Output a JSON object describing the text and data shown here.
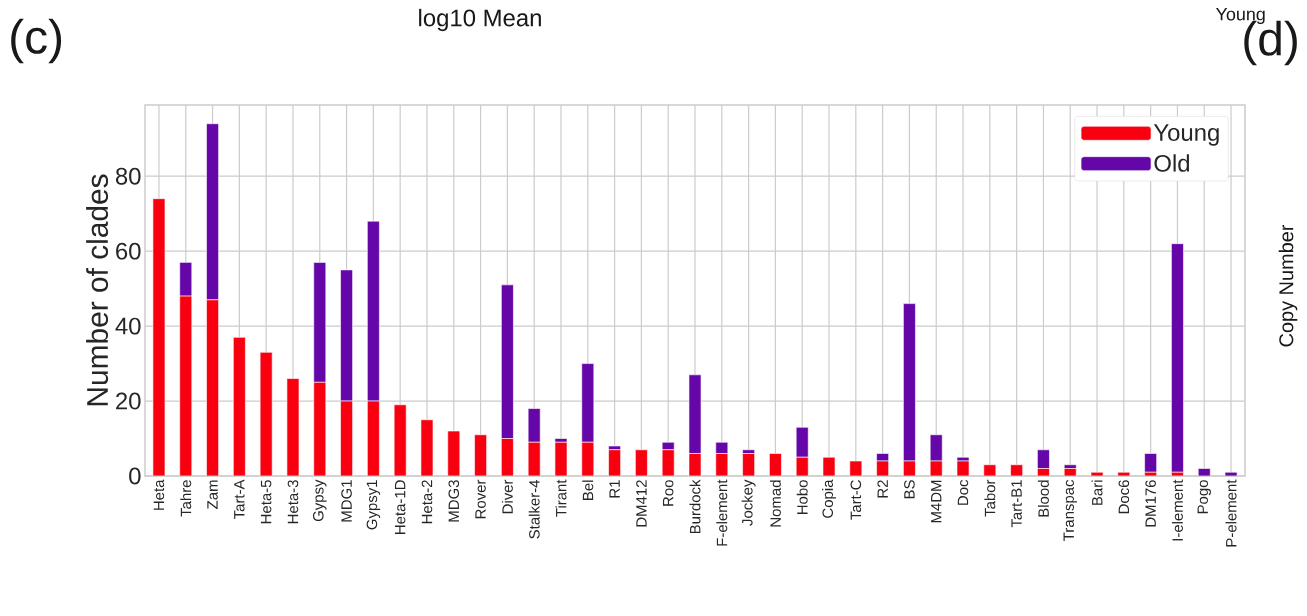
{
  "chart_data": {
    "type": "bar",
    "stacked": true,
    "ylabel": "Number of clades",
    "categories": [
      "Heta",
      "Tahre",
      "Zam",
      "Tart-A",
      "Heta-5",
      "Heta-3",
      "Gypsy",
      "MDG1",
      "Gypsy1",
      "Heta-1D",
      "Heta-2",
      "MDG3",
      "Rover",
      "Diver",
      "Stalker-4",
      "Tirant",
      "Bel",
      "R1",
      "DM412",
      "Roo",
      "Burdock",
      "F-element",
      "Jockey",
      "Nomad",
      "Hobo",
      "Copia",
      "Tart-C",
      "R2",
      "BS",
      "M4DM",
      "Doc",
      "Tabor",
      "Tart-B1",
      "Blood",
      "Transpac",
      "Bari",
      "Doc6",
      "DM176",
      "I-element",
      "Pogo",
      "P-element"
    ],
    "series": [
      {
        "name": "Young",
        "color": "#f90010",
        "values": [
          74,
          48,
          47,
          37,
          33,
          26,
          25,
          20,
          20,
          19,
          15,
          12,
          11,
          10,
          9,
          9,
          9,
          7,
          7,
          7,
          6,
          6,
          6,
          6,
          5,
          5,
          4,
          4,
          4,
          4,
          4,
          3,
          3,
          2,
          2,
          1,
          1,
          1,
          1,
          0,
          0
        ]
      },
      {
        "name": "Old",
        "color": "#6507a8",
        "values": [
          0,
          9,
          47,
          0,
          0,
          0,
          32,
          35,
          48,
          0,
          0,
          0,
          0,
          41,
          9,
          1,
          21,
          1,
          0,
          2,
          21,
          3,
          1,
          0,
          8,
          0,
          0,
          2,
          42,
          7,
          1,
          0,
          0,
          5,
          1,
          0,
          0,
          5,
          61,
          2,
          1
        ]
      }
    ],
    "ylim": [
      0,
      99
    ],
    "yticks": [
      0,
      20,
      40,
      60,
      80
    ],
    "grid": true,
    "legend": "top right",
    "annotations": [
      "(c)",
      "log10 Mean",
      "Young",
      "(d)",
      "Copy Number"
    ]
  }
}
